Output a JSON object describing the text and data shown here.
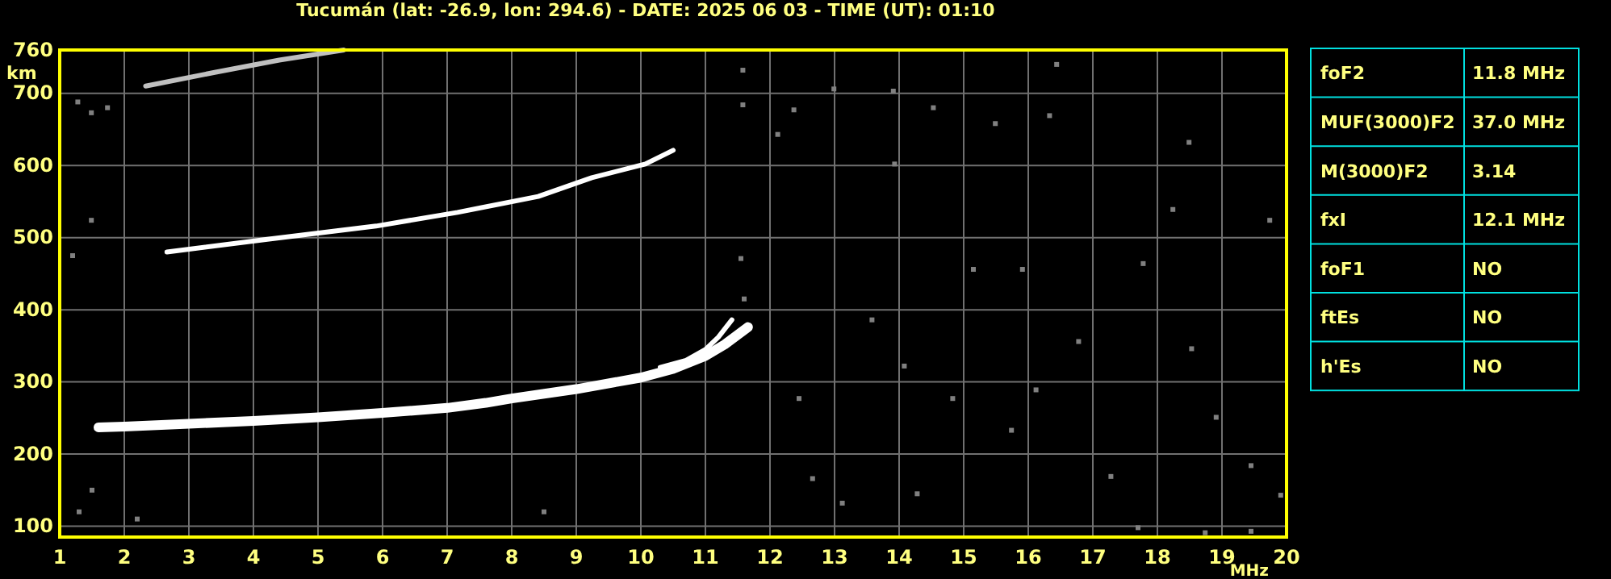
{
  "chart_data": [
    {
      "type": "line",
      "title": "Tucumán (lat: -26.9, lon: 294.6) - DATE: 2025 06 03 - TIME (UT): 01:10",
      "xlabel": "MHz",
      "ylabel": "km",
      "xlim": [
        1,
        20
      ],
      "ylim": [
        85,
        760
      ],
      "xticks": [
        1,
        2,
        3,
        4,
        5,
        6,
        7,
        8,
        9,
        10,
        11,
        12,
        13,
        14,
        15,
        16,
        17,
        18,
        19,
        20
      ],
      "yticks": [
        100,
        200,
        300,
        400,
        500,
        600,
        700,
        760
      ],
      "grid": true,
      "marker": "none",
      "line_style": "solid",
      "series": [
        {
          "color": "#ffffff",
          "x": [
            1.6,
            2,
            3,
            4,
            5,
            6,
            7,
            7.6,
            8,
            9,
            10,
            10.5,
            11,
            11.3,
            11.66
          ],
          "values": [
            237,
            238,
            242,
            246,
            251,
            257,
            264,
            271,
            277,
            290,
            306,
            318,
            336,
            352,
            376
          ]
        },
        {
          "color": "#ffffff",
          "x": [
            10.3,
            10.7,
            11,
            11.2,
            11.41
          ],
          "values": [
            320,
            330,
            345,
            362,
            386
          ]
        },
        {
          "color": "#ffffff",
          "x": [
            2.66,
            4.24,
            5.9,
            7.16,
            8.41,
            9.24,
            10.07,
            10.5
          ],
          "values": [
            480,
            498,
            516,
            535,
            557,
            583,
            602,
            621
          ]
        },
        {
          "color": "#c0c0c0",
          "x": [
            2.33,
            3.4,
            4.4,
            5.4
          ],
          "values": [
            710,
            729,
            746,
            760
          ]
        },
        {
          "type": "scatter",
          "marker": "square",
          "color": "#808080",
          "x": [
            13.91,
            13.93,
            11.6,
            13.12,
            14.28,
            18.74,
            19.45,
            12.37,
            14.53,
            15.49,
            16.33,
            18.49,
            19.74,
            17.78,
            15.91,
            13.58,
            16.78,
            18.53,
            12.45,
            14.83,
            18.91,
            15.74,
            17.28,
            12.66,
            19.45,
            16.44,
            11.58,
            12.99,
            18.24,
            15.15,
            11.55,
            17.7,
            16.12,
            14.08,
            19.91,
            1.28,
            1.49,
            1.49,
            1.2,
            1.74,
            12.12,
            11.58,
            1.5,
            1.3,
            2.2,
            8.5
          ],
          "values": [
            703,
            602,
            415,
            132,
            145,
            91,
            93,
            677,
            680,
            658,
            669,
            632,
            524,
            464,
            456,
            386,
            356,
            346,
            277,
            277,
            251,
            233,
            169,
            166,
            184,
            740,
            732,
            706,
            539,
            456,
            471,
            98,
            289,
            322,
            143,
            688,
            673,
            524,
            475,
            680,
            643,
            684,
            150,
            120,
            110,
            120
          ]
        }
      ]
    },
    {
      "type": "other",
      "annotations": [
        "foF2",
        "11.8 MHz",
        "MUF(3000)F2",
        "37.0 MHz",
        "M(3000)F2",
        "3.14",
        "fxI",
        "12.1 MHz",
        "foF1",
        "NO",
        "ftEs",
        "NO",
        "h'Es",
        "NO"
      ]
    }
  ]
}
